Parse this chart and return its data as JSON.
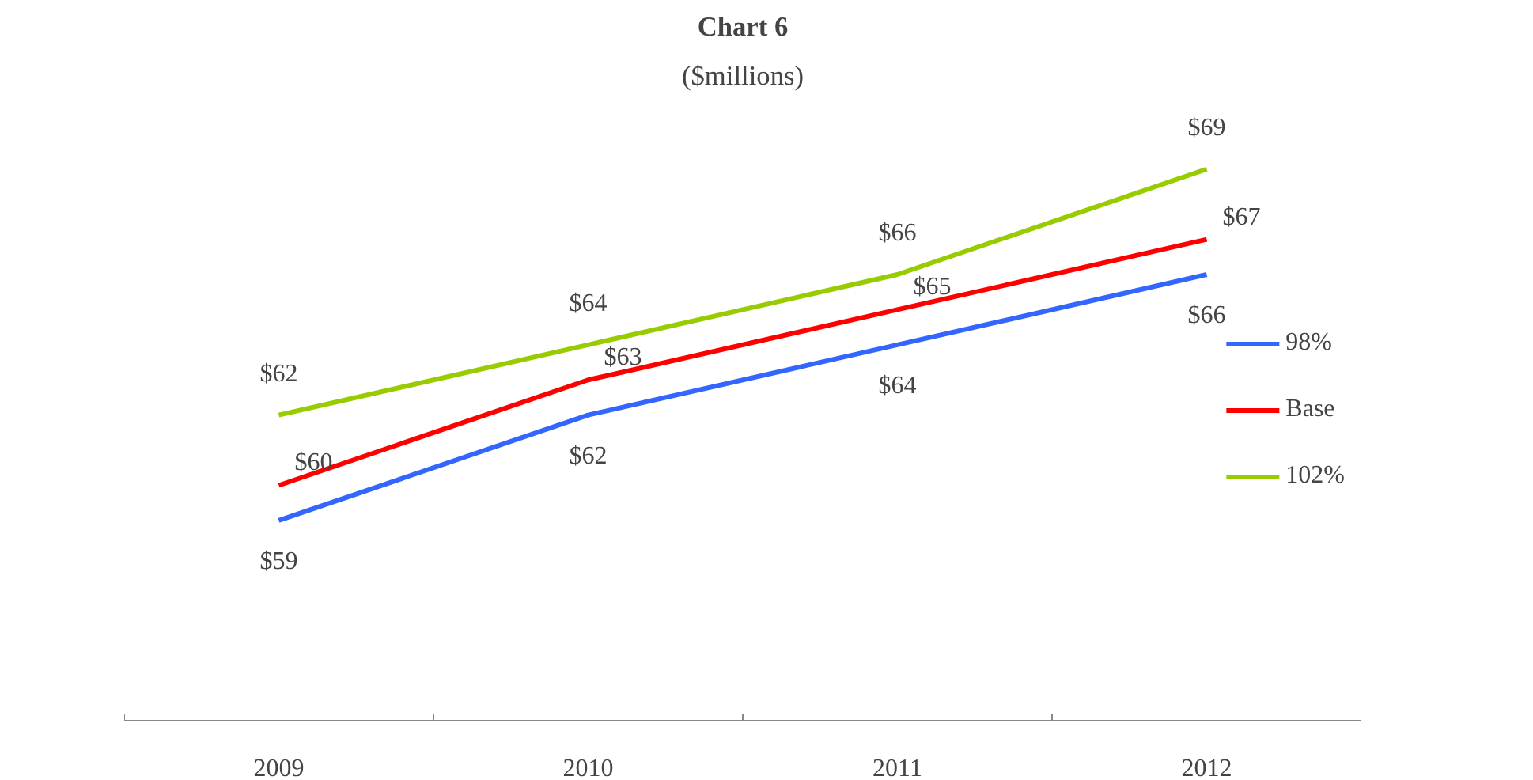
{
  "chart_data": {
    "type": "line",
    "title": "Chart 6",
    "subtitle": "($millions)",
    "categories": [
      "2009",
      "2010",
      "2011",
      "2012"
    ],
    "legend": "right",
    "grid": false,
    "line_style": "solid",
    "series": [
      {
        "name": "98%",
        "color": "#3366ff",
        "values": [
          59,
          62,
          64,
          66
        ],
        "value_labels": [
          "$59",
          "$62",
          "$64",
          "$66"
        ]
      },
      {
        "name": "Base",
        "color": "#ff0000",
        "values": [
          60,
          63,
          65,
          67
        ],
        "value_labels": [
          "$60",
          "$63",
          "$65",
          "$67"
        ]
      },
      {
        "name": "102%",
        "color": "#99cc00",
        "values": [
          62,
          64,
          66,
          69
        ],
        "value_labels": [
          "$62",
          "$64",
          "$66",
          "$69"
        ]
      }
    ]
  }
}
